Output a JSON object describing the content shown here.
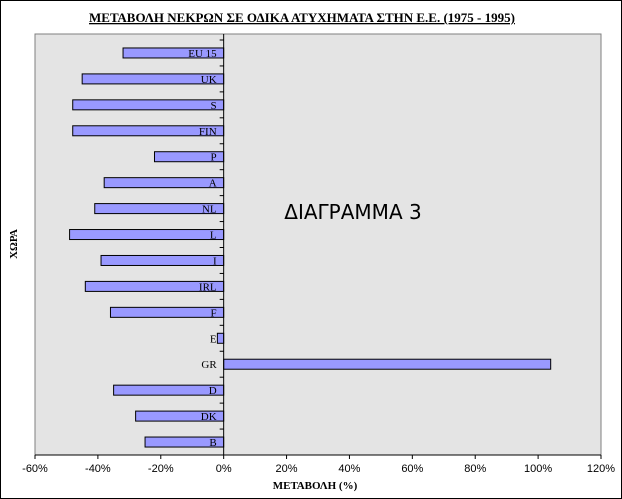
{
  "chart_data": {
    "type": "bar",
    "orientation": "horizontal",
    "title": "ΜΕΤΑΒΟΛΗ ΝΕΚΡΩΝ ΣΕ ΟΔΙΚΑ ΑΤΥΧΗΜΑΤΑ ΣΤΗΝ Ε.Ε. (1975 - 1995)",
    "xlabel": "ΜΕΤΑΒΟΛΗ (%)",
    "ylabel": "ΧΩΡΑ",
    "xlim": [
      -0.6,
      1.2
    ],
    "xticks": [
      -0.6,
      -0.4,
      -0.2,
      0,
      0.2,
      0.4,
      0.6,
      0.8,
      1.0,
      1.2
    ],
    "xtick_labels": [
      "-60%",
      "-40%",
      "-20%",
      "0%",
      "20%",
      "40%",
      "60%",
      "80%",
      "100%",
      "120%"
    ],
    "categories": [
      "EU 15",
      "UK",
      "S",
      "FIN",
      "P",
      "A",
      "NL",
      "L",
      "I",
      "IRL",
      "F",
      "E",
      "GR",
      "D",
      "DK",
      "B"
    ],
    "values": [
      -0.32,
      -0.45,
      -0.48,
      -0.48,
      -0.22,
      -0.38,
      -0.41,
      -0.49,
      -0.39,
      -0.44,
      -0.36,
      -0.02,
      1.04,
      -0.35,
      -0.28,
      -0.25
    ],
    "annotation": "ΔΙΑΓΡΑΜΜΑ  3",
    "grid": false,
    "legend": "none",
    "colors": {
      "plot_background": "#e4e4e4",
      "bar_fill": "#9999ff",
      "bar_stroke": "#000000"
    }
  }
}
